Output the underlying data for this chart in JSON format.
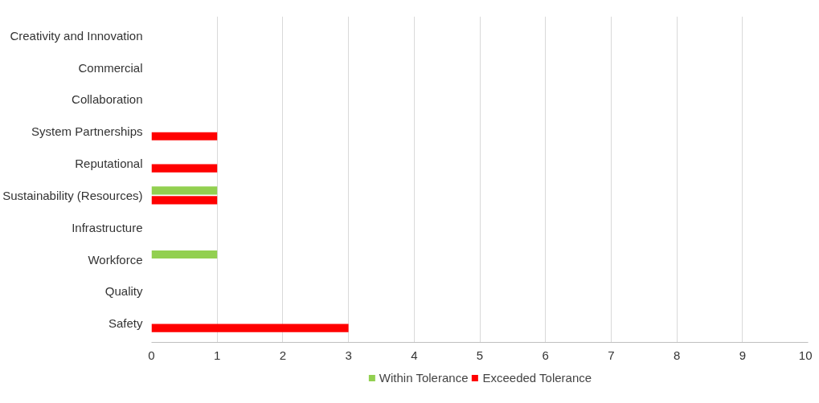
{
  "chart_data": {
    "type": "bar",
    "orientation": "horizontal",
    "categories": [
      "Creativity and Innovation",
      "Commercial",
      "Collaboration",
      "System Partnerships",
      "Reputational",
      "Sustainability (Resources)",
      "Infrastructure",
      "Workforce",
      "Quality",
      "Safety"
    ],
    "series": [
      {
        "name": "Within Tolerance",
        "color": "#92d050",
        "values": [
          0,
          0,
          0,
          0,
          0,
          1,
          0,
          1,
          0,
          0
        ]
      },
      {
        "name": "Exceeded Tolerance",
        "color": "#ff0000",
        "values": [
          0,
          0,
          0,
          1,
          1,
          1,
          0,
          0,
          0,
          3
        ]
      }
    ],
    "xlim": [
      0,
      10
    ],
    "xticks": [
      0,
      1,
      2,
      3,
      4,
      5,
      6,
      7,
      8,
      9,
      10
    ],
    "grid": "x",
    "legend": "bottom"
  }
}
